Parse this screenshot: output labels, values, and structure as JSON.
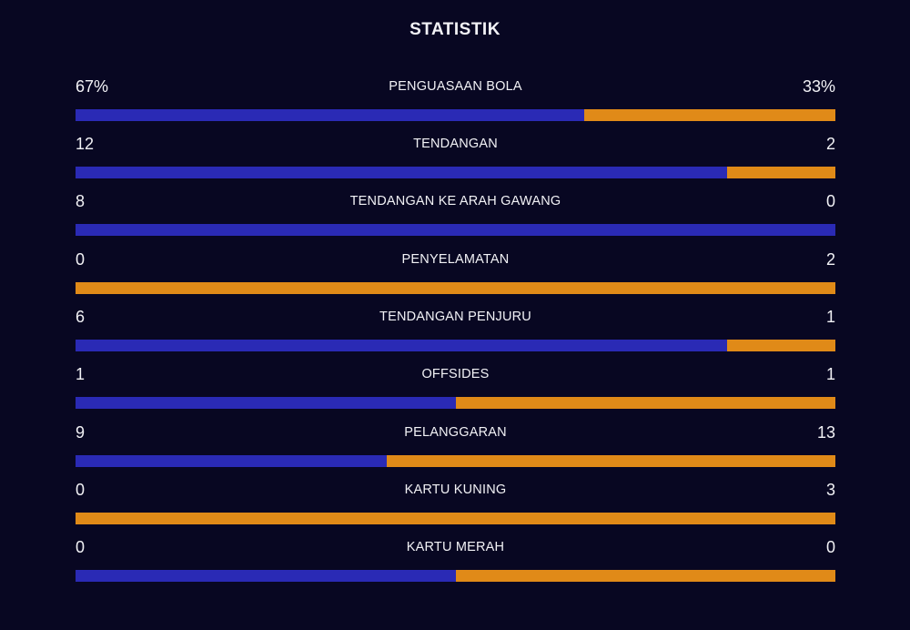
{
  "title": "STATISTIK",
  "colors": {
    "home": "#2a2ab5",
    "away": "#e08a18",
    "background": "#080722"
  },
  "stats": [
    {
      "label": "PENGUASAAN BOLA",
      "home": "67%",
      "away": "33%",
      "home_share": 0.67
    },
    {
      "label": "TENDANGAN",
      "home": "12",
      "away": "2",
      "home_share": 0.857
    },
    {
      "label": "TENDANGAN KE ARAH GAWANG",
      "home": "8",
      "away": "0",
      "home_share": 1.0
    },
    {
      "label": "PENYELAMATAN",
      "home": "0",
      "away": "2",
      "home_share": 0.0
    },
    {
      "label": "TENDANGAN PENJURU",
      "home": "6",
      "away": "1",
      "home_share": 0.857
    },
    {
      "label": "OFFSIDES",
      "home": "1",
      "away": "1",
      "home_share": 0.5
    },
    {
      "label": "PELANGGARAN",
      "home": "9",
      "away": "13",
      "home_share": 0.409
    },
    {
      "label": "KARTU KUNING",
      "home": "0",
      "away": "3",
      "home_share": 0.0
    },
    {
      "label": "KARTU MERAH",
      "home": "0",
      "away": "0",
      "home_share": 0.5
    }
  ]
}
